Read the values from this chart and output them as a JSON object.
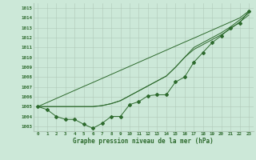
{
  "x": [
    0,
    1,
    2,
    3,
    4,
    5,
    6,
    7,
    8,
    9,
    10,
    11,
    12,
    13,
    14,
    15,
    16,
    17,
    18,
    19,
    20,
    21,
    22,
    23
  ],
  "line_markers": [
    1005.0,
    1004.7,
    1004.0,
    1003.7,
    1003.7,
    1003.2,
    1002.8,
    1003.3,
    1004.0,
    1004.0,
    1005.2,
    1005.5,
    1006.1,
    1006.2,
    1006.2,
    1007.5,
    1008.0,
    1009.5,
    1010.5,
    1011.5,
    1012.2,
    1013.0,
    1013.5,
    1014.7
  ],
  "line_smooth1": [
    1005.0,
    1005.0,
    1005.0,
    1005.0,
    1005.0,
    1005.0,
    1005.0,
    1005.1,
    1005.3,
    1005.6,
    1006.1,
    1006.6,
    1007.1,
    1007.6,
    1008.1,
    1009.0,
    1010.0,
    1010.8,
    1011.3,
    1011.8,
    1012.3,
    1012.9,
    1013.6,
    1014.3
  ],
  "line_smooth2": [
    1005.0,
    1005.0,
    1005.0,
    1005.0,
    1005.0,
    1005.0,
    1005.0,
    1005.1,
    1005.3,
    1005.6,
    1006.1,
    1006.6,
    1007.1,
    1007.6,
    1008.1,
    1009.0,
    1010.0,
    1011.0,
    1011.5,
    1012.0,
    1012.5,
    1013.1,
    1013.8,
    1014.5
  ],
  "line_straight": [
    1005.0,
    1005.41,
    1005.82,
    1006.23,
    1006.64,
    1007.05,
    1007.45,
    1007.86,
    1008.27,
    1008.68,
    1009.09,
    1009.5,
    1009.91,
    1010.32,
    1010.73,
    1011.14,
    1011.55,
    1011.95,
    1012.36,
    1012.77,
    1013.18,
    1013.59,
    1014.0,
    1014.7
  ],
  "ylim": [
    1002.5,
    1015.5
  ],
  "yticks": [
    1003,
    1004,
    1005,
    1006,
    1007,
    1008,
    1009,
    1010,
    1011,
    1012,
    1013,
    1014,
    1015
  ],
  "xlabel": "Graphe pression niveau de la mer (hPa)",
  "line_color": "#2d6a2d",
  "bg_color": "#cce8d8",
  "grid_color": "#b0c8b8",
  "marker": "D",
  "marker_size": 2.0,
  "figsize": [
    3.2,
    2.0
  ],
  "dpi": 100
}
